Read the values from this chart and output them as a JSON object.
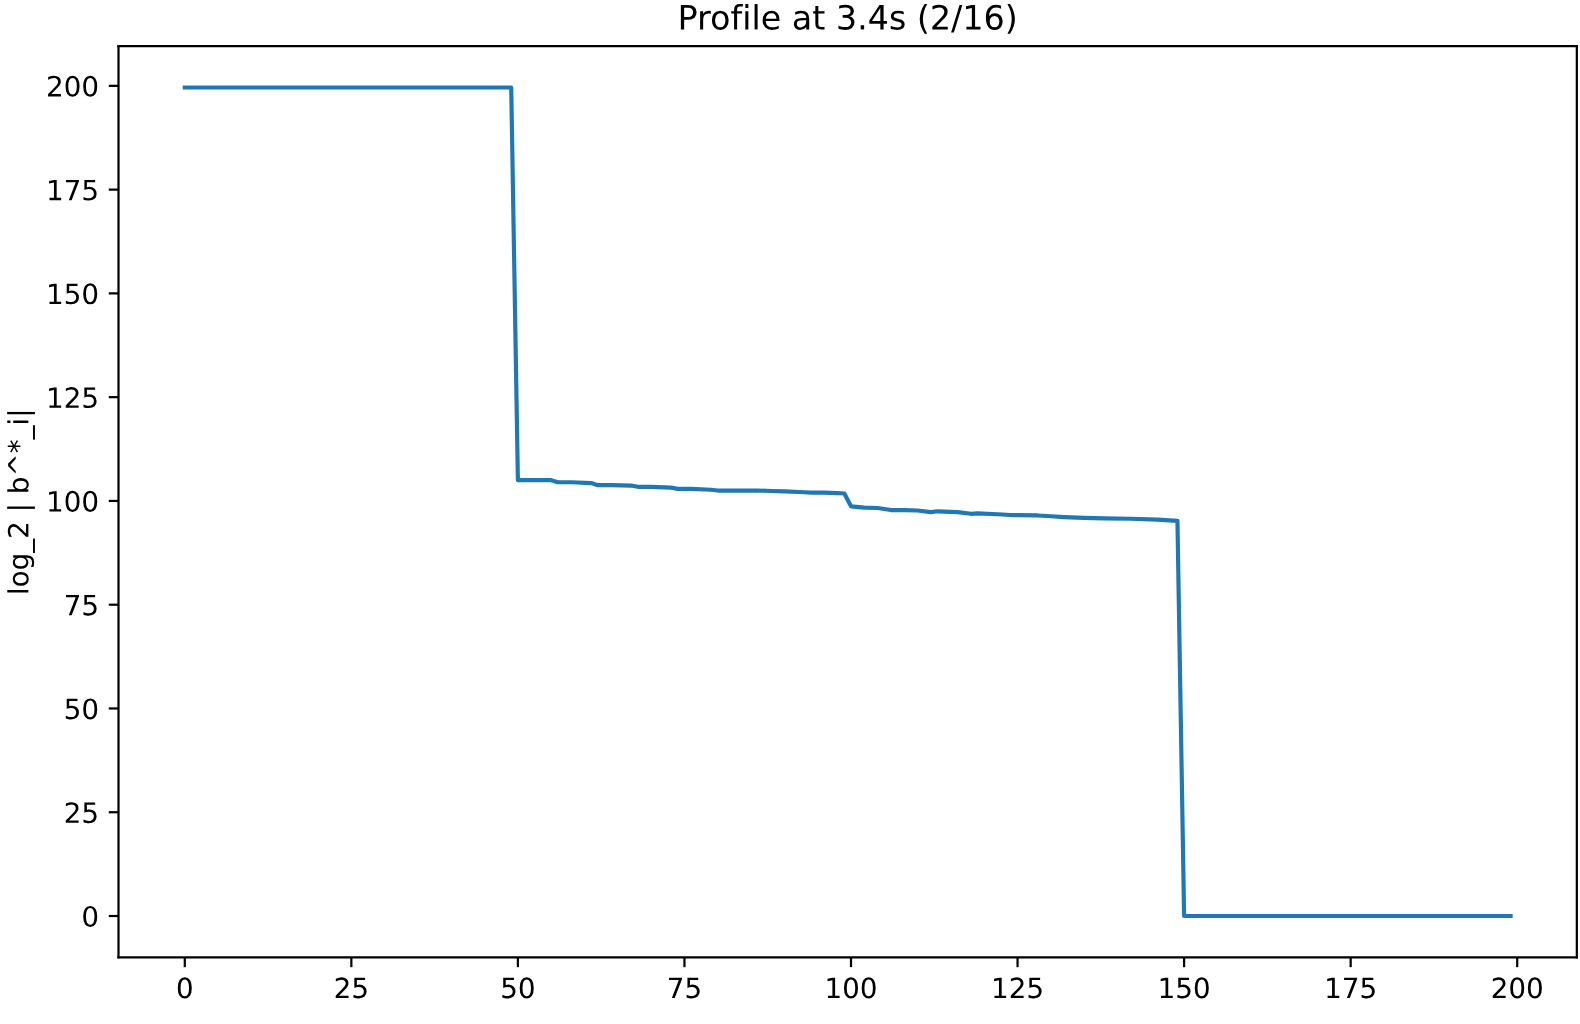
{
  "chart_data": {
    "type": "line",
    "title": "Profile at 3.4s (2/16)",
    "ylabel": "log_2 | b^*_i|",
    "x": [
      0,
      49,
      50,
      52,
      55,
      56,
      58,
      61,
      62,
      64,
      67,
      68,
      70,
      73,
      74,
      76,
      79,
      80,
      82,
      86,
      88,
      90,
      93,
      94,
      96,
      98,
      99,
      100,
      102,
      104,
      106,
      108,
      110,
      112,
      113,
      116,
      118,
      119,
      122,
      124,
      125,
      128,
      130,
      132,
      135,
      138,
      142,
      146,
      149,
      150,
      160,
      175,
      199
    ],
    "series": [
      {
        "color": "#1f77b4",
        "values": [
          199.6,
          199.6,
          105,
          105,
          105,
          104.5,
          104.5,
          104.3,
          103.8,
          103.8,
          103.7,
          103.4,
          103.4,
          103.2,
          102.9,
          102.9,
          102.7,
          102.5,
          102.5,
          102.5,
          102.4,
          102.3,
          102.1,
          102,
          102,
          101.9,
          101.8,
          98.7,
          98.4,
          98.3,
          97.8,
          97.8,
          97.7,
          97.3,
          97.5,
          97.3,
          96.9,
          97,
          96.8,
          96.6,
          96.6,
          96.5,
          96.3,
          96.1,
          95.9,
          95.8,
          95.7,
          95.5,
          95.2,
          0,
          0,
          0,
          0
        ]
      }
    ],
    "xlim": [
      -9.95,
      208.95
    ],
    "ylim": [
      -9.98,
      209.58
    ],
    "xticks": [
      0,
      25,
      50,
      75,
      100,
      125,
      150,
      175,
      200
    ],
    "yticks": [
      0,
      25,
      50,
      75,
      100,
      125,
      150,
      175,
      200
    ],
    "grid": false,
    "legend": false
  }
}
